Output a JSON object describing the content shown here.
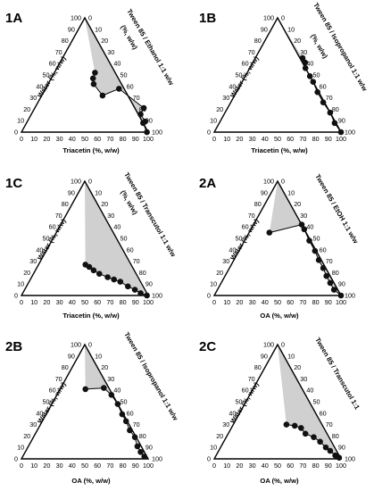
{
  "chart_data": [
    {
      "type": "ternary",
      "panel_label": "1A",
      "axes": {
        "left": "Water (%, w/w)",
        "right": "Tween 85 / Ethanol 1:1 w/w",
        "right_unit": "(%, w/w)",
        "bottom": "Triacetin (%, w/w)"
      },
      "ticks": [
        0,
        10,
        20,
        30,
        40,
        50,
        60,
        70,
        80,
        90,
        100
      ],
      "region_shading": "gray",
      "boundary_points": [
        {
          "oil": 58,
          "water": 38
        },
        {
          "oil": 77,
          "water": 35
        },
        {
          "oil": 48,
          "water": 32
        },
        {
          "oil": 90,
          "water": 14
        },
        {
          "oil": 84,
          "water": 19
        },
        {
          "oil": 92,
          "water": 8
        },
        {
          "oil": 99,
          "water": 0
        },
        {
          "oil": 36,
          "water": 42
        },
        {
          "oil": 32,
          "water": 52
        },
        {
          "oil": 33,
          "water": 47
        }
      ]
    },
    {
      "type": "ternary",
      "panel_label": "1B",
      "axes": {
        "left": "Water (%, w/w)",
        "right": "Tween 85 / Isopropanol 1:1 w/w",
        "right_unit": "(%, w/w)",
        "bottom": "Triacetin (%, w/w)"
      },
      "ticks": [
        0,
        10,
        20,
        30,
        40,
        50,
        60,
        70,
        80,
        90,
        100
      ],
      "region_shading": "gray",
      "boundary_points": [
        {
          "oil": 35,
          "water": 66
        },
        {
          "oil": 39,
          "water": 62
        },
        {
          "oil": 44,
          "water": 56
        },
        {
          "oil": 51,
          "water": 49
        },
        {
          "oil": 56,
          "water": 44
        },
        {
          "oil": 64,
          "water": 35
        },
        {
          "oil": 73,
          "water": 26
        },
        {
          "oil": 83,
          "water": 17
        },
        {
          "oil": 91,
          "water": 8
        },
        {
          "oil": 100,
          "water": 0
        }
      ]
    },
    {
      "type": "ternary",
      "panel_label": "1C",
      "axes": {
        "left": "Water (%, w/w)",
        "right": "Tween 85 / Transcutol 1:1 w/w",
        "right_unit": "(%, w/w)",
        "bottom": "Triacetin (%, w/w)"
      },
      "ticks": [
        0,
        10,
        20,
        30,
        40,
        50,
        60,
        70,
        80,
        90,
        100
      ],
      "region_shading": "gray",
      "boundary_points": [
        {
          "oil": 37,
          "water": 27
        },
        {
          "oil": 41,
          "water": 25
        },
        {
          "oil": 46,
          "water": 22
        },
        {
          "oil": 52,
          "water": 19
        },
        {
          "oil": 60,
          "water": 16
        },
        {
          "oil": 66,
          "water": 14
        },
        {
          "oil": 72,
          "water": 12
        },
        {
          "oil": 80,
          "water": 8
        },
        {
          "oil": 87,
          "water": 5
        },
        {
          "oil": 93,
          "water": 2
        },
        {
          "oil": 99,
          "water": 0
        }
      ]
    },
    {
      "type": "ternary",
      "panel_label": "2A",
      "axes": {
        "left": "Water (%, w/w)",
        "right": "Tween 85 / EtOH 1:1 w/w",
        "right_unit": "",
        "bottom": "OA (%, w/w)"
      },
      "ticks": [
        0,
        10,
        20,
        30,
        40,
        50,
        60,
        70,
        80,
        90,
        100
      ],
      "region_shading": "gray",
      "boundary_points": [
        {
          "oil": 16,
          "water": 55
        },
        {
          "oil": 38,
          "water": 62
        },
        {
          "oil": 42,
          "water": 58
        },
        {
          "oil": 51,
          "water": 48
        },
        {
          "oil": 60,
          "water": 39
        },
        {
          "oil": 67,
          "water": 31
        },
        {
          "oil": 74,
          "water": 24
        },
        {
          "oil": 80,
          "water": 17
        },
        {
          "oil": 86,
          "water": 11
        },
        {
          "oil": 92,
          "water": 5
        },
        {
          "oil": 100,
          "water": 0
        }
      ]
    },
    {
      "type": "ternary",
      "panel_label": "2B",
      "axes": {
        "left": "Water (%, w/w)",
        "right": "Tween 85 / Isopropanol 1:1 w/w",
        "right_unit": "",
        "bottom": "OA (%, w/w)"
      },
      "ticks": [
        0,
        10,
        20,
        30,
        40,
        50,
        60,
        70,
        80,
        90,
        100
      ],
      "region_shading": "gray",
      "boundary_points": [
        {
          "oil": 20,
          "water": 61
        },
        {
          "oil": 34,
          "water": 62
        },
        {
          "oil": 43,
          "water": 56
        },
        {
          "oil": 52,
          "water": 48
        },
        {
          "oil": 60,
          "water": 39
        },
        {
          "oil": 66,
          "water": 33
        },
        {
          "oil": 73,
          "water": 25
        },
        {
          "oil": 80,
          "water": 19
        },
        {
          "oil": 86,
          "water": 11
        },
        {
          "oil": 91,
          "water": 6
        },
        {
          "oil": 96,
          "water": 2
        }
      ]
    },
    {
      "type": "ternary",
      "panel_label": "2C",
      "axes": {
        "left": "Water (%, w/w)",
        "right": "Tween 85 / Transcutol 1:1",
        "right_unit": "",
        "bottom": "OA (%, w/w)"
      },
      "ticks": [
        0,
        10,
        20,
        30,
        40,
        50,
        60,
        70,
        80,
        90,
        100
      ],
      "region_shading": "gray",
      "boundary_points": [
        {
          "oil": 42,
          "water": 30
        },
        {
          "oil": 49,
          "water": 29
        },
        {
          "oil": 55,
          "water": 27
        },
        {
          "oil": 61,
          "water": 22
        },
        {
          "oil": 69,
          "water": 19
        },
        {
          "oil": 76,
          "water": 15
        },
        {
          "oil": 83,
          "water": 10
        },
        {
          "oil": 88,
          "water": 7
        },
        {
          "oil": 94,
          "water": 3
        },
        {
          "oil": 98,
          "water": 1
        }
      ]
    }
  ]
}
